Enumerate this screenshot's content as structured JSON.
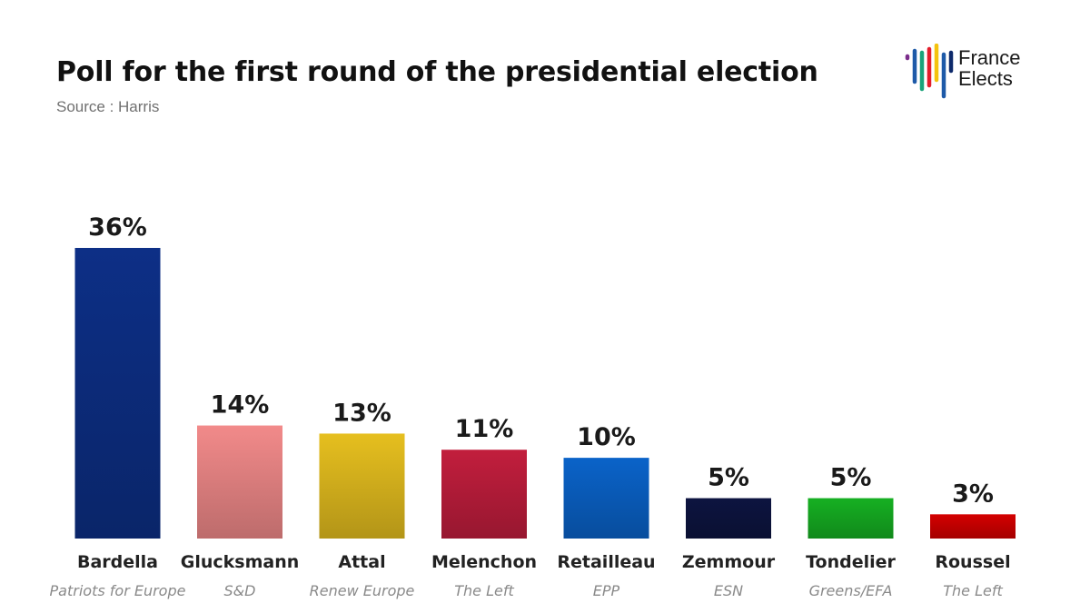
{
  "header": {
    "title": "Poll for the first round of the presidential election",
    "source": "Source : Harris"
  },
  "logo": {
    "line1": "France",
    "line2": "Elects",
    "stripe_colors": [
      "#7b2d8b",
      "#1e5aa8",
      "#1aa37a",
      "#e31d2b",
      "#f4c20d",
      "#1e5aa8",
      "#0e2a6b"
    ]
  },
  "chart_data": {
    "type": "bar",
    "title": "Poll for the first round of the presidential election",
    "categories": [
      "Bardella",
      "Glucksmann",
      "Attal",
      "Melenchon",
      "Retailleau",
      "Zemmour",
      "Tondelier",
      "Roussel"
    ],
    "groups": [
      "Patriots for Europe",
      "S&D",
      "Renew Europe",
      "The Left",
      "EPP",
      "ESN",
      "Greens/EFA",
      "The Left"
    ],
    "values": [
      36,
      14,
      13,
      11,
      10,
      5,
      5,
      3
    ],
    "value_labels": [
      "36%",
      "14%",
      "13%",
      "11%",
      "10%",
      "5%",
      "5%",
      "3%"
    ],
    "colors": [
      "#0d2f86",
      "#f28a8a",
      "#e6bf1f",
      "#c21e3d",
      "#0a63c9",
      "#0d1440",
      "#16b022",
      "#d40000"
    ],
    "ylim": [
      0,
      36
    ],
    "grid": false,
    "legend": "none"
  }
}
